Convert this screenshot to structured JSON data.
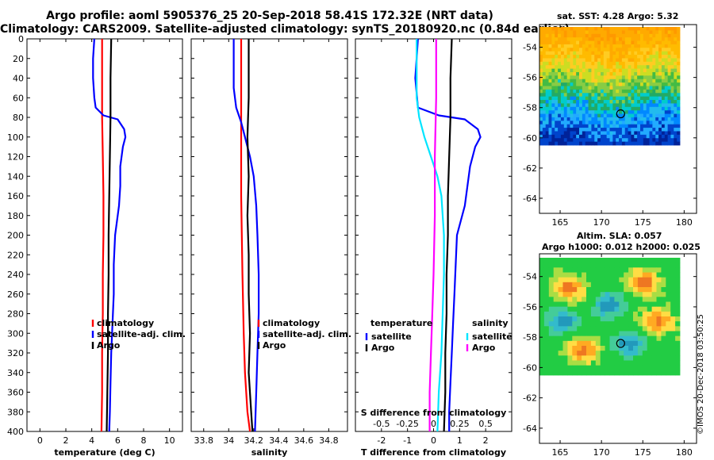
{
  "title": {
    "line1": "Argo profile: aoml 5905376_25 20-Sep-2018 58.41S 172.32E (NRT data)",
    "line2": "Climatology: CARS2009. Satellite-adjusted climatology: synTS_20180920.nc (0.84d earlier)"
  },
  "watermark": "©IMOS 20-Dec-2018 03:50:25",
  "colors": {
    "clim": "#ff0000",
    "sat": "#0000ff",
    "argo": "#000000",
    "cyan": "#00e5ff",
    "magenta": "#ff00ff"
  },
  "chart_data": [
    {
      "type": "line",
      "name": "temperature",
      "xlabel": "temperature (deg C)",
      "ylabel": "",
      "xlim": [
        -1,
        11
      ],
      "ylim": [
        0,
        400
      ],
      "xticks": [
        0,
        2,
        4,
        6,
        8,
        10
      ],
      "yticks": [
        0,
        20,
        40,
        60,
        80,
        100,
        120,
        140,
        160,
        180,
        200,
        220,
        240,
        260,
        280,
        300,
        320,
        340,
        360,
        380,
        400
      ],
      "legend": [
        "climatology",
        "satellite-adj. clim.",
        "Argo"
      ],
      "series": [
        {
          "name": "climatology",
          "color": "#ff0000",
          "points": [
            [
              4.8,
              0
            ],
            [
              4.8,
              40
            ],
            [
              4.8,
              80
            ],
            [
              4.85,
              120
            ],
            [
              4.9,
              160
            ],
            [
              4.9,
              200
            ],
            [
              4.85,
              240
            ],
            [
              4.85,
              280
            ],
            [
              4.8,
              320
            ],
            [
              4.8,
              360
            ],
            [
              4.75,
              400
            ]
          ]
        },
        {
          "name": "satellite-adj. clim.",
          "color": "#0000ff",
          "points": [
            [
              4.2,
              0
            ],
            [
              4.1,
              20
            ],
            [
              4.1,
              40
            ],
            [
              4.2,
              60
            ],
            [
              4.3,
              70
            ],
            [
              4.9,
              78
            ],
            [
              6.0,
              82
            ],
            [
              6.5,
              92
            ],
            [
              6.6,
              100
            ],
            [
              6.4,
              110
            ],
            [
              6.2,
              130
            ],
            [
              6.2,
              150
            ],
            [
              6.1,
              170
            ],
            [
              5.8,
              200
            ],
            [
              5.7,
              230
            ],
            [
              5.7,
              260
            ],
            [
              5.6,
              290
            ],
            [
              5.5,
              320
            ],
            [
              5.45,
              350
            ],
            [
              5.4,
              380
            ],
            [
              5.35,
              400
            ]
          ]
        },
        {
          "name": "Argo",
          "color": "#000000",
          "points": [
            [
              5.5,
              0
            ],
            [
              5.45,
              40
            ],
            [
              5.45,
              80
            ],
            [
              5.4,
              120
            ],
            [
              5.35,
              160
            ],
            [
              5.3,
              200
            ],
            [
              5.3,
              240
            ],
            [
              5.25,
              280
            ],
            [
              5.25,
              320
            ],
            [
              5.2,
              360
            ],
            [
              5.15,
              400
            ]
          ]
        }
      ]
    },
    {
      "type": "line",
      "name": "salinity",
      "xlabel": "salinity",
      "xlim": [
        33.7,
        34.95
      ],
      "ylim": [
        0,
        400
      ],
      "xticks": [
        33.8,
        34,
        34.2,
        34.4,
        34.6,
        34.8
      ],
      "yticks": [
        0,
        20,
        40,
        60,
        80,
        100,
        120,
        140,
        160,
        180,
        200,
        220,
        240,
        260,
        280,
        300,
        320,
        340,
        360,
        380,
        400
      ],
      "legend": [
        "climatology",
        "satellite-adj. clim.",
        "Argo"
      ],
      "series": [
        {
          "name": "climatology",
          "color": "#ff0000",
          "points": [
            [
              34.1,
              0
            ],
            [
              34.1,
              80
            ],
            [
              34.1,
              160
            ],
            [
              34.11,
              240
            ],
            [
              34.12,
              300
            ],
            [
              34.13,
              340
            ],
            [
              34.15,
              380
            ],
            [
              34.17,
              400
            ]
          ]
        },
        {
          "name": "satellite-adj. clim.",
          "color": "#0000ff",
          "points": [
            [
              34.04,
              0
            ],
            [
              34.04,
              50
            ],
            [
              34.06,
              70
            ],
            [
              34.1,
              85
            ],
            [
              34.13,
              100
            ],
            [
              34.17,
              120
            ],
            [
              34.2,
              140
            ],
            [
              34.22,
              170
            ],
            [
              34.23,
              200
            ],
            [
              34.24,
              240
            ],
            [
              34.24,
              280
            ],
            [
              34.23,
              320
            ],
            [
              34.22,
              360
            ],
            [
              34.21,
              400
            ]
          ]
        },
        {
          "name": "Argo",
          "color": "#000000",
          "points": [
            [
              34.16,
              0
            ],
            [
              34.16,
              60
            ],
            [
              34.15,
              100
            ],
            [
              34.16,
              140
            ],
            [
              34.15,
              180
            ],
            [
              34.16,
              220
            ],
            [
              34.16,
              260
            ],
            [
              34.17,
              300
            ],
            [
              34.16,
              340
            ],
            [
              34.18,
              380
            ],
            [
              34.19,
              400
            ]
          ]
        }
      ]
    },
    {
      "type": "line",
      "name": "difference from climatology",
      "xlabel": "T difference from climatology",
      "x2label": "S difference from climatology",
      "xlim": [
        -3,
        3
      ],
      "ylim": [
        0,
        400
      ],
      "xticks": [
        -2,
        -1,
        0,
        1,
        2
      ],
      "x2ticks": [
        "-0.5",
        "-0.25",
        "0",
        "0.25",
        "0.5"
      ],
      "x2tick_pos": [
        -2,
        -1,
        0,
        1,
        2
      ],
      "yticks": [
        0,
        20,
        40,
        60,
        80,
        100,
        120,
        140,
        160,
        180,
        200,
        220,
        240,
        260,
        280,
        300,
        320,
        340,
        360,
        380,
        400
      ],
      "legend_left_title": "temperature",
      "legend_left": [
        "satellite",
        "Argo"
      ],
      "legend_right_title": "salinity",
      "legend_right": [
        "satellite",
        "Argo"
      ],
      "series": [
        {
          "name": "temperature satellite",
          "color": "#0000ff",
          "points": [
            [
              -0.6,
              0
            ],
            [
              -0.7,
              40
            ],
            [
              -0.6,
              70
            ],
            [
              0.2,
              78
            ],
            [
              1.2,
              82
            ],
            [
              1.7,
              92
            ],
            [
              1.8,
              100
            ],
            [
              1.6,
              110
            ],
            [
              1.4,
              130
            ],
            [
              1.3,
              150
            ],
            [
              1.2,
              170
            ],
            [
              0.9,
              200
            ],
            [
              0.85,
              230
            ],
            [
              0.8,
              260
            ],
            [
              0.75,
              290
            ],
            [
              0.7,
              320
            ],
            [
              0.65,
              350
            ],
            [
              0.6,
              380
            ],
            [
              0.6,
              400
            ]
          ]
        },
        {
          "name": "temperature Argo",
          "color": "#000000",
          "points": [
            [
              0.7,
              0
            ],
            [
              0.65,
              40
            ],
            [
              0.65,
              80
            ],
            [
              0.6,
              120
            ],
            [
              0.55,
              160
            ],
            [
              0.55,
              200
            ],
            [
              0.5,
              240
            ],
            [
              0.5,
              280
            ],
            [
              0.45,
              320
            ],
            [
              0.45,
              360
            ],
            [
              0.4,
              400
            ]
          ]
        },
        {
          "name": "salinity satellite",
          "color": "#00e5ff",
          "points": [
            [
              -0.65,
              0
            ],
            [
              -0.65,
              40
            ],
            [
              -0.65,
              60
            ],
            [
              -0.55,
              80
            ],
            [
              -0.35,
              100
            ],
            [
              -0.1,
              120
            ],
            [
              0.15,
              140
            ],
            [
              0.3,
              160
            ],
            [
              0.4,
              200
            ],
            [
              0.4,
              240
            ],
            [
              0.35,
              280
            ],
            [
              0.3,
              320
            ],
            [
              0.2,
              360
            ],
            [
              0.15,
              400
            ]
          ]
        },
        {
          "name": "salinity Argo",
          "color": "#ff00ff",
          "points": [
            [
              0.1,
              0
            ],
            [
              0.1,
              60
            ],
            [
              0.05,
              120
            ],
            [
              0.05,
              180
            ],
            [
              0.0,
              240
            ],
            [
              -0.05,
              280
            ],
            [
              -0.1,
              320
            ],
            [
              -0.15,
              360
            ],
            [
              -0.15,
              400
            ]
          ]
        }
      ]
    },
    {
      "type": "heatmap",
      "name": "sat-sst-map",
      "title": "sat. SST: 4.28 Argo: 5.32",
      "xticks": [
        165,
        170,
        175,
        180
      ],
      "yticks": [
        -54,
        -56,
        -58,
        -60,
        -62,
        -64
      ],
      "xlim": [
        162.5,
        181.5
      ],
      "ylim": [
        -65,
        -52.5
      ],
      "marker": [
        172.32,
        -58.41
      ]
    },
    {
      "type": "heatmap",
      "name": "altim-sla-map",
      "title": "Altim. SLA: 0.057",
      "subtitle": "Argo h1000: 0.012 h2000: 0.025",
      "xticks": [
        165,
        170,
        175,
        180
      ],
      "yticks": [
        -54,
        -56,
        -58,
        -60,
        -62,
        -64
      ],
      "xlim": [
        162.5,
        181.5
      ],
      "ylim": [
        -65,
        -52.5
      ],
      "marker": [
        172.32,
        -58.41
      ]
    }
  ]
}
